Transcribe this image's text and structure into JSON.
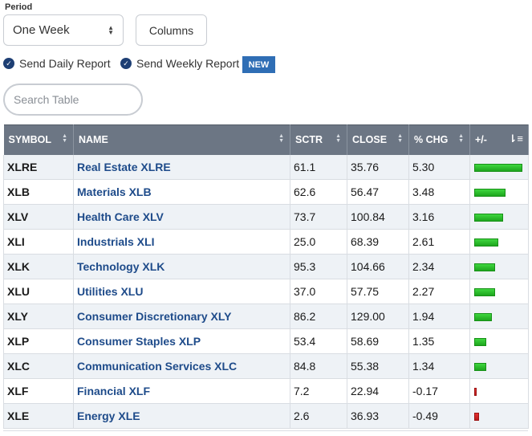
{
  "period": {
    "label": "Period",
    "selected": "One Week"
  },
  "columns_button": "Columns",
  "reports": {
    "daily": "Send Daily Report",
    "weekly": "Send Weekly Report",
    "new_badge": "NEW"
  },
  "search": {
    "placeholder": "Search Table"
  },
  "table": {
    "headers": [
      "SYMBOL",
      "NAME",
      "SCTR",
      "CLOSE",
      "% CHG",
      "+/-"
    ],
    "rows": [
      {
        "symbol": "XLRE",
        "name": "Real Estate XLRE",
        "sctr": "61.1",
        "close": "35.76",
        "chg": "5.30"
      },
      {
        "symbol": "XLB",
        "name": "Materials XLB",
        "sctr": "62.6",
        "close": "56.47",
        "chg": "3.48"
      },
      {
        "symbol": "XLV",
        "name": "Health Care XLV",
        "sctr": "73.7",
        "close": "100.84",
        "chg": "3.16"
      },
      {
        "symbol": "XLI",
        "name": "Industrials XLI",
        "sctr": "25.0",
        "close": "68.39",
        "chg": "2.61"
      },
      {
        "symbol": "XLK",
        "name": "Technology XLK",
        "sctr": "95.3",
        "close": "104.66",
        "chg": "2.34"
      },
      {
        "symbol": "XLU",
        "name": "Utilities XLU",
        "sctr": "37.0",
        "close": "57.75",
        "chg": "2.27"
      },
      {
        "symbol": "XLY",
        "name": "Consumer Discretionary XLY",
        "sctr": "86.2",
        "close": "129.00",
        "chg": "1.94"
      },
      {
        "symbol": "XLP",
        "name": "Consumer Staples XLP",
        "sctr": "53.4",
        "close": "58.69",
        "chg": "1.35"
      },
      {
        "symbol": "XLC",
        "name": "Communication Services XLC",
        "sctr": "84.8",
        "close": "55.38",
        "chg": "1.34"
      },
      {
        "symbol": "XLF",
        "name": "Financial XLF",
        "sctr": "7.2",
        "close": "22.94",
        "chg": "-0.17"
      },
      {
        "symbol": "XLE",
        "name": "Energy XLE",
        "sctr": "2.6",
        "close": "36.93",
        "chg": "-0.49"
      }
    ]
  },
  "colors": {
    "header_bg": "#6c7684",
    "link": "#1e4b8a",
    "positive_bar": "#1ea61e",
    "negative_bar": "#b81c1c",
    "badge": "#2f6eb5"
  }
}
